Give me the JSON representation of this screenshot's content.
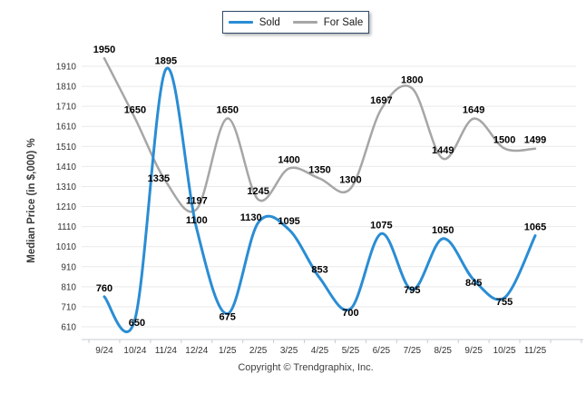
{
  "chart_data": {
    "type": "line",
    "smooth": true,
    "grid": "horizontal",
    "legend_position": "top-center",
    "xlabel": "",
    "ylabel": "Median Price (in $,000) %",
    "ylim": [
      610,
      1910
    ],
    "ytick_step": 100,
    "categories": [
      "9/24",
      "10/24",
      "11/24",
      "12/24",
      "1/25",
      "2/25",
      "3/25",
      "4/25",
      "5/25",
      "6/25",
      "7/25",
      "8/25",
      "9/25",
      "10/25",
      "11/25"
    ],
    "series": [
      {
        "name": "Sold",
        "color": "#2a8dd4",
        "values": [
          760,
          650,
          1895,
          1100,
          675,
          1130,
          1095,
          853,
          700,
          1075,
          795,
          1050,
          845,
          755,
          1065
        ]
      },
      {
        "name": "For Sale",
        "color": "#a6a6a6",
        "values": [
          1950,
          1650,
          1335,
          1197,
          1650,
          1245,
          1400,
          1350,
          1300,
          1697,
          1800,
          1449,
          1649,
          1500,
          1499
        ]
      }
    ]
  },
  "footer": {
    "copyright": "Copyright © Trendgraphix, Inc."
  },
  "colors": {
    "gridline": "#e9e9e9",
    "axis_line": "#c8cdd2",
    "tick": "#c8cdd2"
  }
}
